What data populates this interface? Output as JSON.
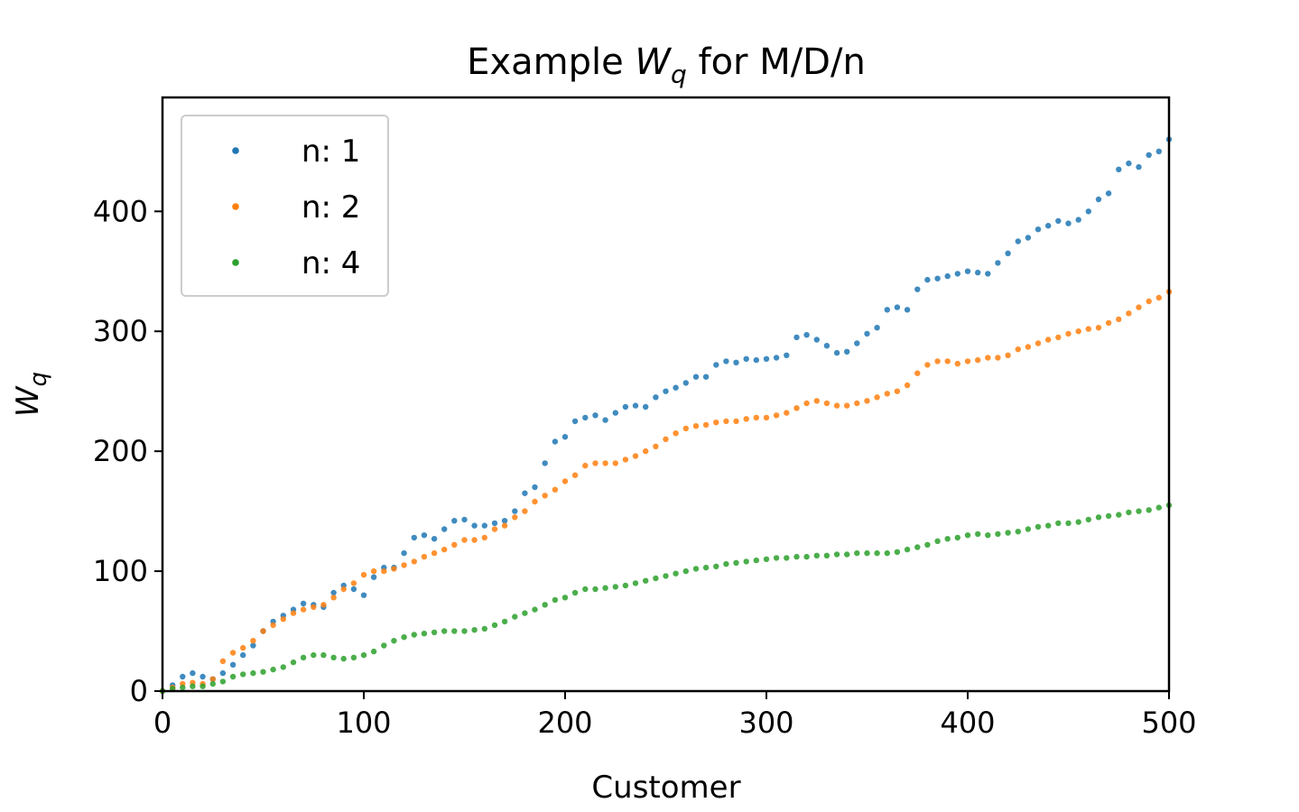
{
  "chart_data": {
    "type": "scatter",
    "title": "Example W_q for M/D/n",
    "title_parts": {
      "prefix": "Example ",
      "var": "W",
      "sub": "q",
      "suffix": " for M/D/n"
    },
    "xlabel": "Customer",
    "ylabel_parts": {
      "var": "W",
      "sub": "q"
    },
    "xlim": [
      0,
      500
    ],
    "ylim": [
      0,
      495
    ],
    "xticks": [
      0,
      100,
      200,
      300,
      400,
      500
    ],
    "yticks": [
      0,
      100,
      200,
      300,
      400
    ],
    "xtick_labels": [
      "0",
      "100",
      "200",
      "300",
      "400",
      "500"
    ],
    "ytick_labels": [
      "0",
      "100",
      "200",
      "300",
      "400"
    ],
    "grid": false,
    "legend_position": "top-left",
    "series": [
      {
        "name": "n: 1",
        "color": "#1f77b4",
        "x": [
          0,
          5,
          10,
          15,
          20,
          25,
          30,
          35,
          40,
          45,
          50,
          55,
          60,
          65,
          70,
          75,
          80,
          85,
          90,
          95,
          100,
          105,
          110,
          115,
          120,
          125,
          130,
          135,
          140,
          145,
          150,
          155,
          160,
          165,
          170,
          175,
          180,
          185,
          190,
          195,
          200,
          205,
          210,
          215,
          220,
          225,
          230,
          235,
          240,
          245,
          250,
          255,
          260,
          265,
          270,
          275,
          280,
          285,
          290,
          295,
          300,
          305,
          310,
          315,
          320,
          325,
          330,
          335,
          340,
          345,
          350,
          355,
          360,
          365,
          370,
          375,
          380,
          385,
          390,
          395,
          400,
          405,
          410,
          415,
          420,
          425,
          430,
          435,
          440,
          445,
          450,
          455,
          460,
          465,
          470,
          475,
          480,
          485,
          490,
          495,
          500
        ],
        "y": [
          0,
          5,
          12,
          15,
          12,
          10,
          15,
          22,
          30,
          38,
          50,
          58,
          63,
          68,
          73,
          72,
          70,
          82,
          88,
          85,
          80,
          95,
          103,
          103,
          115,
          128,
          130,
          127,
          135,
          142,
          143,
          138,
          138,
          140,
          142,
          150,
          165,
          170,
          190,
          208,
          212,
          225,
          228,
          230,
          226,
          232,
          237,
          238,
          237,
          245,
          250,
          253,
          257,
          262,
          262,
          272,
          275,
          274,
          277,
          276,
          277,
          278,
          280,
          295,
          297,
          293,
          288,
          282,
          283,
          290,
          298,
          303,
          318,
          320,
          318,
          335,
          343,
          344,
          346,
          348,
          350,
          349,
          348,
          357,
          365,
          375,
          378,
          385,
          388,
          392,
          390,
          393,
          400,
          410,
          415,
          435,
          440,
          437,
          447,
          450,
          460
        ]
      },
      {
        "name": "n: 2",
        "color": "#ff7f0e",
        "x": [
          0,
          5,
          10,
          15,
          20,
          25,
          30,
          35,
          40,
          45,
          50,
          55,
          60,
          65,
          70,
          75,
          80,
          85,
          90,
          95,
          100,
          105,
          110,
          115,
          120,
          125,
          130,
          135,
          140,
          145,
          150,
          155,
          160,
          165,
          170,
          175,
          180,
          185,
          190,
          195,
          200,
          205,
          210,
          215,
          220,
          225,
          230,
          235,
          240,
          245,
          250,
          255,
          260,
          265,
          270,
          275,
          280,
          285,
          290,
          295,
          300,
          305,
          310,
          315,
          320,
          325,
          330,
          335,
          340,
          345,
          350,
          355,
          360,
          365,
          370,
          375,
          380,
          385,
          390,
          395,
          400,
          405,
          410,
          415,
          420,
          425,
          430,
          435,
          440,
          445,
          450,
          455,
          460,
          465,
          470,
          475,
          480,
          485,
          490,
          495,
          500
        ],
        "y": [
          0,
          3,
          6,
          7,
          6,
          10,
          25,
          32,
          36,
          42,
          50,
          55,
          60,
          65,
          68,
          70,
          72,
          78,
          85,
          90,
          97,
          100,
          100,
          102,
          105,
          108,
          112,
          115,
          118,
          122,
          126,
          126,
          128,
          135,
          138,
          145,
          150,
          158,
          163,
          168,
          175,
          180,
          188,
          190,
          190,
          190,
          193,
          196,
          200,
          204,
          210,
          215,
          219,
          221,
          222,
          224,
          225,
          225,
          227,
          228,
          228,
          230,
          232,
          236,
          240,
          242,
          240,
          238,
          238,
          240,
          242,
          245,
          248,
          250,
          255,
          265,
          272,
          275,
          275,
          273,
          275,
          276,
          278,
          278,
          280,
          285,
          287,
          290,
          293,
          295,
          298,
          300,
          302,
          303,
          307,
          310,
          315,
          320,
          325,
          328,
          333
        ]
      },
      {
        "name": "n: 4",
        "color": "#2ca02c",
        "x": [
          0,
          5,
          10,
          15,
          20,
          25,
          30,
          35,
          40,
          45,
          50,
          55,
          60,
          65,
          70,
          75,
          80,
          85,
          90,
          95,
          100,
          105,
          110,
          115,
          120,
          125,
          130,
          135,
          140,
          145,
          150,
          155,
          160,
          165,
          170,
          175,
          180,
          185,
          190,
          195,
          200,
          205,
          210,
          215,
          220,
          225,
          230,
          235,
          240,
          245,
          250,
          255,
          260,
          265,
          270,
          275,
          280,
          285,
          290,
          295,
          300,
          305,
          310,
          315,
          320,
          325,
          330,
          335,
          340,
          345,
          350,
          355,
          360,
          365,
          370,
          375,
          380,
          385,
          390,
          395,
          400,
          405,
          410,
          415,
          420,
          425,
          430,
          435,
          440,
          445,
          450,
          455,
          460,
          465,
          470,
          475,
          480,
          485,
          490,
          495,
          500
        ],
        "y": [
          0,
          2,
          3,
          4,
          4,
          6,
          8,
          12,
          14,
          15,
          16,
          18,
          20,
          24,
          28,
          30,
          30,
          28,
          27,
          28,
          30,
          33,
          38,
          42,
          45,
          47,
          48,
          49,
          50,
          50,
          50,
          51,
          52,
          55,
          58,
          62,
          65,
          68,
          72,
          76,
          78,
          82,
          85,
          85,
          86,
          87,
          88,
          90,
          92,
          94,
          96,
          98,
          100,
          102,
          103,
          104,
          106,
          107,
          108,
          109,
          110,
          111,
          111,
          112,
          112,
          113,
          113,
          114,
          114,
          115,
          115,
          115,
          115,
          116,
          118,
          120,
          122,
          125,
          127,
          128,
          130,
          131,
          130,
          131,
          132,
          133,
          135,
          137,
          138,
          140,
          140,
          141,
          143,
          145,
          146,
          147,
          149,
          150,
          151,
          153,
          155
        ]
      }
    ]
  }
}
